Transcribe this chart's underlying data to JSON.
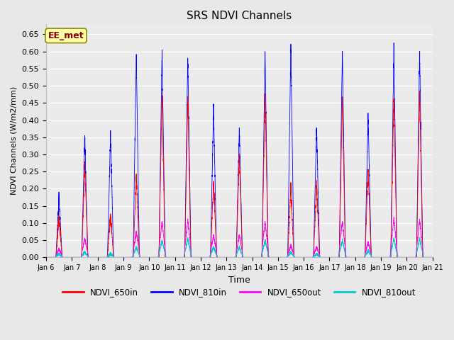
{
  "title": "SRS NDVI Channels",
  "ylabel": "NDVI Channels (W/m2/mm)",
  "xlabel": "Time",
  "annotation": "EE_met",
  "ylim": [
    0.0,
    0.68
  ],
  "colors": {
    "NDVI_650in": "#ff0000",
    "NDVI_810in": "#0000ff",
    "NDVI_650out": "#ff00ff",
    "NDVI_810out": "#00cccc"
  },
  "fig_bg": "#e8e8e8",
  "axes_bg": "#ebebeb",
  "day_labels": [
    "Jan 6",
    "Jan 7",
    "Jan 8",
    "Jan 9",
    "Jan 10",
    "Jan 11",
    "Jan 12",
    "Jan 13",
    "Jan 14",
    "Jan 15",
    "Jan 16",
    "Jan 17",
    "Jan 18",
    "Jan 19",
    "Jan 20",
    "Jan 21"
  ],
  "peak_810in": [
    0.175,
    0.355,
    0.36,
    0.595,
    0.6,
    0.585,
    0.435,
    0.375,
    0.6,
    0.62,
    0.38,
    0.61,
    0.415,
    0.61,
    0.605
  ],
  "peak_650in": [
    0.12,
    0.27,
    0.125,
    0.24,
    0.475,
    0.465,
    0.225,
    0.3,
    0.475,
    0.21,
    0.215,
    0.465,
    0.26,
    0.47,
    0.485
  ],
  "peak_650out": [
    0.025,
    0.055,
    0.01,
    0.075,
    0.105,
    0.11,
    0.065,
    0.065,
    0.105,
    0.035,
    0.03,
    0.105,
    0.045,
    0.115,
    0.11
  ],
  "peak_810out": [
    0.01,
    0.015,
    0.01,
    0.03,
    0.05,
    0.055,
    0.03,
    0.03,
    0.05,
    0.015,
    0.01,
    0.05,
    0.02,
    0.055,
    0.055
  ]
}
